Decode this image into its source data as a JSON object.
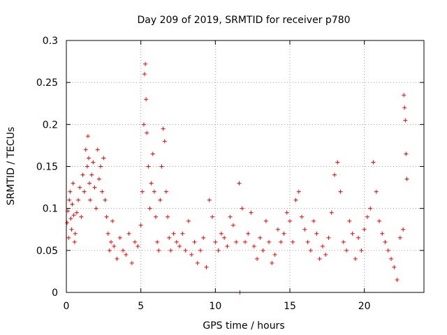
{
  "chart_data": {
    "type": "scatter",
    "title": "Day 209 of 2019, SRMTID for receiver p780",
    "xlabel": "GPS time / hours",
    "ylabel": "SRMTID / TECUs",
    "xlim": [
      0,
      24
    ],
    "ylim": [
      0,
      0.3
    ],
    "x_ticks": [
      0,
      5,
      10,
      15,
      20
    ],
    "x_tick_labels": [
      "0",
      "5",
      "10",
      "15",
      "20"
    ],
    "y_ticks": [
      0,
      0.05,
      0.1,
      0.15,
      0.2,
      0.25,
      0.3
    ],
    "y_tick_labels": [
      "0",
      "0.05",
      "0.1",
      "0.15",
      "0.2",
      "0.25",
      "0.3"
    ],
    "grid": true,
    "marker": "+",
    "color": "#ff0000",
    "series": [
      {
        "name": "SRMTID",
        "x": [
          0.05,
          0.1,
          0.15,
          0.2,
          0.25,
          0.3,
          0.35,
          0.4,
          0.45,
          0.5,
          0.55,
          0.6,
          0.7,
          0.8,
          0.9,
          1.0,
          1.1,
          1.2,
          1.3,
          1.4,
          1.45,
          1.5,
          1.55,
          1.6,
          1.7,
          1.8,
          1.9,
          2.0,
          2.1,
          2.2,
          2.3,
          2.4,
          2.5,
          2.6,
          2.7,
          2.8,
          2.9,
          3.0,
          3.1,
          3.2,
          3.4,
          3.6,
          3.8,
          4.0,
          4.2,
          4.4,
          4.6,
          4.8,
          5.0,
          5.1,
          5.2,
          5.25,
          5.3,
          5.35,
          5.4,
          5.5,
          5.6,
          5.7,
          5.8,
          5.9,
          6.0,
          6.1,
          6.2,
          6.3,
          6.4,
          6.5,
          6.6,
          6.7,
          6.8,
          6.9,
          7.0,
          7.2,
          7.4,
          7.6,
          7.8,
          8.0,
          8.2,
          8.4,
          8.6,
          8.8,
          9.0,
          9.2,
          9.4,
          9.6,
          9.8,
          10.0,
          10.2,
          10.4,
          10.6,
          10.8,
          11.0,
          11.2,
          11.4,
          11.6,
          11.65,
          11.8,
          12.0,
          12.2,
          12.4,
          12.6,
          12.8,
          13.0,
          13.2,
          13.4,
          13.6,
          13.8,
          14.0,
          14.2,
          14.4,
          14.6,
          14.8,
          15.0,
          15.2,
          15.4,
          15.6,
          15.8,
          16.0,
          16.2,
          16.4,
          16.6,
          16.8,
          17.0,
          17.2,
          17.4,
          17.6,
          17.8,
          18.0,
          18.2,
          18.4,
          18.6,
          18.8,
          19.0,
          19.2,
          19.4,
          19.6,
          19.8,
          20.0,
          20.2,
          20.4,
          20.6,
          20.8,
          21.0,
          21.2,
          21.4,
          21.6,
          21.8,
          22.0,
          22.2,
          22.4,
          22.6,
          22.65,
          22.7,
          22.75,
          22.8,
          22.85
        ],
        "y": [
          0.083,
          0.097,
          0.065,
          0.11,
          0.12,
          0.088,
          0.075,
          0.105,
          0.13,
          0.092,
          0.06,
          0.07,
          0.095,
          0.11,
          0.125,
          0.09,
          0.14,
          0.12,
          0.17,
          0.15,
          0.186,
          0.16,
          0.13,
          0.11,
          0.14,
          0.155,
          0.125,
          0.1,
          0.17,
          0.135,
          0.15,
          0.12,
          0.16,
          0.11,
          0.09,
          0.07,
          0.05,
          0.06,
          0.085,
          0.055,
          0.04,
          0.065,
          0.05,
          0.045,
          0.07,
          0.035,
          0.06,
          0.055,
          0.08,
          0.12,
          0.2,
          0.26,
          0.272,
          0.23,
          0.19,
          0.15,
          0.1,
          0.13,
          0.165,
          0.12,
          0.09,
          0.06,
          0.05,
          0.11,
          0.15,
          0.195,
          0.18,
          0.12,
          0.09,
          0.065,
          0.05,
          0.07,
          0.06,
          0.055,
          0.07,
          0.05,
          0.085,
          0.045,
          0.06,
          0.035,
          0.05,
          0.065,
          0.03,
          0.11,
          0.09,
          0.06,
          0.05,
          0.07,
          0.065,
          0.055,
          0.09,
          0.08,
          0.06,
          0.13,
          0.0,
          0.1,
          0.06,
          0.07,
          0.095,
          0.055,
          0.04,
          0.065,
          0.05,
          0.085,
          0.06,
          0.035,
          0.045,
          0.075,
          0.06,
          0.07,
          0.095,
          0.085,
          0.06,
          0.11,
          0.12,
          0.09,
          0.075,
          0.06,
          0.05,
          0.085,
          0.07,
          0.04,
          0.055,
          0.045,
          0.065,
          0.095,
          0.14,
          0.155,
          0.12,
          0.06,
          0.05,
          0.085,
          0.07,
          0.04,
          0.065,
          0.05,
          0.075,
          0.09,
          0.1,
          0.155,
          0.12,
          0.085,
          0.07,
          0.06,
          0.05,
          0.04,
          0.03,
          0.015,
          0.065,
          0.075,
          0.235,
          0.22,
          0.205,
          0.165,
          0.135
        ]
      }
    ]
  }
}
